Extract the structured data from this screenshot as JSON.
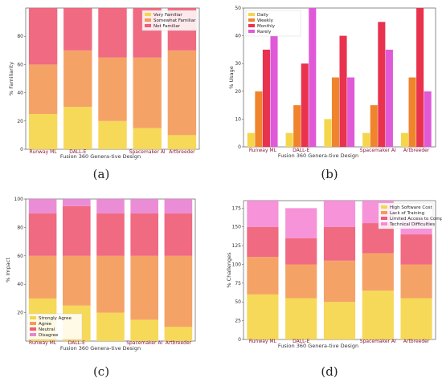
{
  "panel_labels": [
    "(a)",
    "(b)",
    "(c)",
    "(d)"
  ],
  "chart_data": [
    {
      "panel": "a",
      "type": "bar",
      "stacked": true,
      "categories": [
        "Runway ML",
        "DALL-E",
        "Fusion 360 Genera-tive Design",
        "Spacemaker AI",
        "Artbreeder"
      ],
      "xlabel": "",
      "ylabel": "% Familiarity",
      "ylim": [
        0,
        100
      ],
      "yticks": [
        0,
        20,
        40,
        60,
        80
      ],
      "legend_position": "top-right",
      "series": [
        {
          "name": "Very Familiar",
          "values": [
            25,
            30,
            20,
            15,
            10
          ],
          "color": "#f5d64a"
        },
        {
          "name": "Somewhat Familiar",
          "values": [
            35,
            40,
            45,
            50,
            60
          ],
          "color": "#f49a5a"
        },
        {
          "name": "Not Familiar",
          "values": [
            40,
            30,
            35,
            35,
            30
          ],
          "color": "#ef5d77"
        }
      ]
    },
    {
      "panel": "b",
      "type": "bar",
      "stacked": false,
      "categories": [
        "Runway ML",
        "DALL-E",
        "Fusion 360 Genera-tive Design",
        "Spacemaker AI",
        "Artbreeder"
      ],
      "xlabel": "",
      "ylabel": "% Usage",
      "ylim": [
        0,
        50
      ],
      "yticks": [
        0,
        10,
        20,
        30,
        40,
        50
      ],
      "legend_position": "top-left",
      "series": [
        {
          "name": "Daily",
          "values": [
            5,
            5,
            10,
            5,
            5
          ],
          "color": "#f5d64a"
        },
        {
          "name": "Weekly",
          "values": [
            20,
            15,
            25,
            15,
            25
          ],
          "color": "#f0842c"
        },
        {
          "name": "Monthly",
          "values": [
            35,
            30,
            40,
            45,
            50
          ],
          "color": "#e8324e"
        },
        {
          "name": "Rarely",
          "values": [
            40,
            50,
            25,
            35,
            20
          ],
          "color": "#e05ad8"
        }
      ]
    },
    {
      "panel": "c",
      "type": "bar",
      "stacked": true,
      "categories": [
        "Runway ML",
        "DALL-E",
        "Fusion 360 Genera-tive Design",
        "Spacemaker AI",
        "Artbreeder"
      ],
      "xlabel": "",
      "ylabel": "% Impact",
      "ylim": [
        0,
        100
      ],
      "yticks": [
        20,
        40,
        60,
        80,
        100
      ],
      "legend_position": "bottom-left",
      "series": [
        {
          "name": "Strongly Agree",
          "values": [
            30,
            25,
            20,
            15,
            10
          ],
          "color": "#f5d64a"
        },
        {
          "name": "Agree",
          "values": [
            30,
            35,
            40,
            45,
            50
          ],
          "color": "#f49a5a"
        },
        {
          "name": "Neutral",
          "values": [
            30,
            35,
            30,
            30,
            30
          ],
          "color": "#ef5d77"
        },
        {
          "name": "Disagree",
          "values": [
            10,
            5,
            10,
            10,
            10
          ],
          "color": "#e983d3"
        }
      ]
    },
    {
      "panel": "d",
      "type": "bar",
      "stacked": true,
      "categories": [
        "Runway ML",
        "DALL-E",
        "Fusion 360 Genera-tive Design",
        "Spacemaker AI",
        "Artbreeder"
      ],
      "xlabel": "",
      "ylabel": "% Challenges",
      "ylim": [
        0,
        185
      ],
      "yticks": [
        0,
        25,
        50,
        75,
        100,
        125,
        150,
        175
      ],
      "legend_position": "top-right",
      "series": [
        {
          "name": "High Software Cost",
          "values": [
            60,
            55,
            50,
            65,
            55
          ],
          "color": "#f5d64a"
        },
        {
          "name": "Lack of Training",
          "values": [
            50,
            45,
            55,
            50,
            45
          ],
          "color": "#f49a5a"
        },
        {
          "name": "Limited Access to Computers",
          "values": [
            40,
            35,
            45,
            40,
            40
          ],
          "color": "#ef5d77"
        },
        {
          "name": "Technical Difficulties",
          "values": [
            35,
            40,
            35,
            30,
            20
          ],
          "color": "#f58ad6"
        }
      ]
    }
  ]
}
